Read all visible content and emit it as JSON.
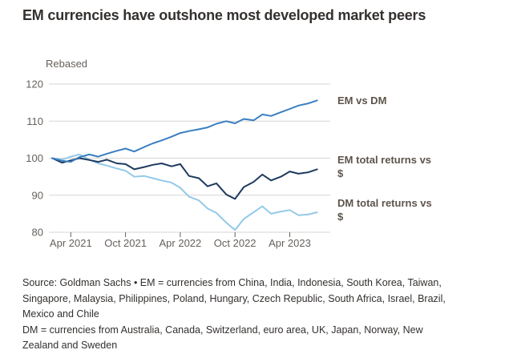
{
  "chart_data": {
    "type": "line",
    "title": "EM currencies have outshone most developed market peers",
    "ylabel": "Rebased",
    "xlabel": "",
    "ylim": [
      80,
      120
    ],
    "yticks": [
      80,
      90,
      100,
      110,
      120
    ],
    "xlim": [
      2021.05,
      2023.62
    ],
    "xticks": [
      {
        "v": 2021.25,
        "label": "Apr 2021"
      },
      {
        "v": 2021.75,
        "label": "Oct 2021"
      },
      {
        "v": 2022.25,
        "label": "Apr 2022"
      },
      {
        "v": 2022.75,
        "label": "Oct 2022"
      },
      {
        "v": 2023.25,
        "label": "Apr 2023"
      }
    ],
    "grid": "horizontal",
    "legend_position": "right-of-lines",
    "colors": {
      "grid": "#d9d5d0",
      "axis_text": "#66605c",
      "label": "#5d544b"
    },
    "x": [
      2021.08,
      2021.17,
      2021.25,
      2021.33,
      2021.42,
      2021.5,
      2021.58,
      2021.67,
      2021.75,
      2021.83,
      2021.92,
      2022.0,
      2022.08,
      2022.17,
      2022.25,
      2022.33,
      2022.42,
      2022.5,
      2022.58,
      2022.67,
      2022.75,
      2022.83,
      2022.92,
      2023.0,
      2023.08,
      2023.17,
      2023.25,
      2023.33,
      2023.42,
      2023.5
    ],
    "series": [
      {
        "id": "em-vs-dm",
        "name": "EM vs DM",
        "label_lines": [
          "EM vs DM"
        ],
        "color": "#3a7fc1",
        "values": [
          100,
          99.3,
          99.0,
          100.3,
          101.0,
          100.4,
          101.2,
          102.0,
          102.6,
          101.8,
          103.0,
          104.0,
          104.8,
          105.8,
          106.8,
          107.3,
          107.8,
          108.3,
          109.3,
          110.0,
          109.4,
          110.6,
          110.2,
          111.8,
          111.4,
          112.4,
          113.3,
          114.2,
          114.8,
          115.6
        ]
      },
      {
        "id": "em-total-returns",
        "name": "EM total returns vs $",
        "label_lines": [
          "EM total returns vs",
          "$"
        ],
        "color": "#1e3a5f",
        "values": [
          100,
          98.8,
          99.4,
          100.0,
          99.5,
          99.0,
          99.6,
          98.6,
          98.4,
          97.0,
          97.6,
          98.2,
          98.6,
          97.8,
          98.4,
          95.2,
          94.6,
          92.4,
          93.2,
          90.2,
          89.0,
          92.2,
          93.6,
          95.6,
          94.0,
          95.0,
          96.4,
          95.8,
          96.2,
          97.0
        ]
      },
      {
        "id": "dm-total-returns",
        "name": "DM total returns vs $",
        "label_lines": [
          "DM total returns vs",
          "$"
        ],
        "color": "#94c9e8",
        "values": [
          100,
          99.6,
          100.4,
          101.0,
          99.6,
          98.6,
          98.0,
          97.2,
          96.6,
          95.0,
          95.2,
          94.6,
          94.0,
          93.4,
          92.0,
          89.6,
          88.6,
          86.4,
          85.2,
          82.6,
          80.6,
          83.6,
          85.4,
          87.0,
          85.0,
          85.6,
          86.0,
          84.6,
          84.8,
          85.4
        ]
      }
    ]
  },
  "footnote": {
    "em": "Source: Goldman Sachs • EM = currencies from China, India, Indonesia, South Korea, Taiwan, Singapore, Malaysia, Philippines, Poland, Hungary, Czech Republic, South Africa, Israel, Brazil, Mexico and Chile",
    "dm": "DM = currencies from Australia, Canada, Switzerland, euro area, UK, Japan, Norway, New Zealand and Sweden"
  }
}
